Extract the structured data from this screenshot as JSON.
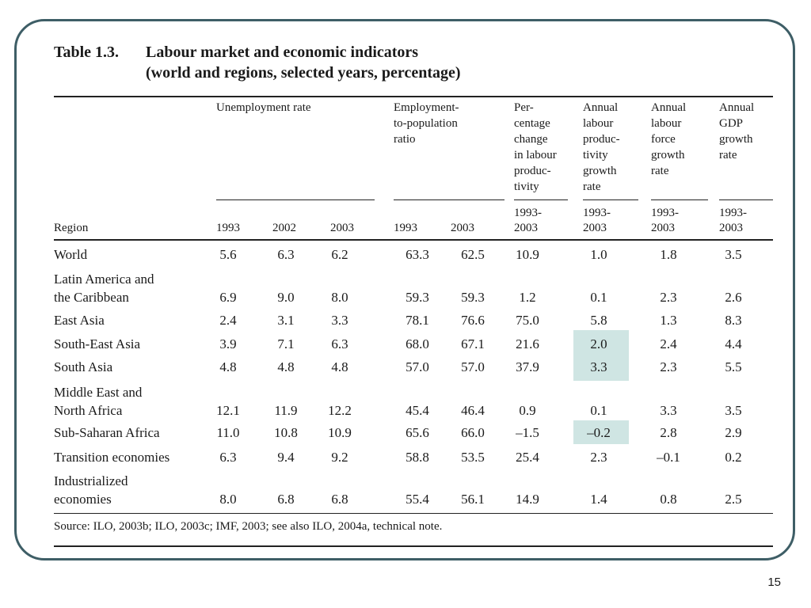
{
  "title": {
    "number": "Table 1.3.",
    "line1": "Labour market and economic indicators",
    "line2": "(world and regions, selected years, percentage)"
  },
  "headers": {
    "unemployment": "Unemployment rate",
    "employment": "Employment-\nto-population\nratio",
    "pct_change": "Per-\ncentage\nchange\nin labour\nproduc-\ntivity",
    "annual_productivity": "Annual\nlabour\nproduc-\ntivity\ngrowth\nrate",
    "annual_labour_force": "Annual\nlabour\nforce\ngrowth\nrate",
    "annual_gdp": "Annual\nGDP\ngrowth\nrate",
    "region": "Region",
    "years": [
      "1993",
      "2002",
      "2003",
      "1993",
      "2003",
      "1993-\n2003",
      "1993-\n2003",
      "1993-\n2003",
      "1993-\n2003"
    ]
  },
  "rows": [
    {
      "region": "World",
      "values": [
        "5.6",
        "6.3",
        "6.2",
        "63.3",
        "62.5",
        "10.9",
        "1.0",
        "1.8",
        "3.5"
      ]
    },
    {
      "region": "Latin America and\nthe Caribbean",
      "values": [
        "6.9",
        "9.0",
        "8.0",
        "59.3",
        "59.3",
        "1.2",
        "0.1",
        "2.3",
        "2.6"
      ]
    },
    {
      "region": "East Asia",
      "values": [
        "2.4",
        "3.1",
        "3.3",
        "78.1",
        "76.6",
        "75.0",
        "5.8",
        "1.3",
        "8.3"
      ]
    },
    {
      "region": "South-East Asia",
      "values": [
        "3.9",
        "7.1",
        "6.3",
        "68.0",
        "67.1",
        "21.6",
        "2.0",
        "2.4",
        "4.4"
      ]
    },
    {
      "region": "South Asia",
      "values": [
        "4.8",
        "4.8",
        "4.8",
        "57.0",
        "57.0",
        "37.9",
        "3.3",
        "2.3",
        "5.5"
      ]
    },
    {
      "region": "Middle East and\nNorth Africa",
      "values": [
        "12.1",
        "11.9",
        "12.2",
        "45.4",
        "46.4",
        "0.9",
        "0.1",
        "3.3",
        "3.5"
      ]
    },
    {
      "region": "Sub-Saharan Africa",
      "values": [
        "11.0",
        "10.8",
        "10.9",
        "65.6",
        "66.0",
        "–1.5",
        "–0.2",
        "2.8",
        "2.9"
      ]
    },
    {
      "region": "Transition economies",
      "values": [
        "6.3",
        "9.4",
        "9.2",
        "58.8",
        "53.5",
        "25.4",
        "2.3",
        "–0.1",
        "0.2"
      ]
    },
    {
      "region": "Industrialized\neconomies",
      "values": [
        "8.0",
        "6.8",
        "6.8",
        "55.4",
        "56.1",
        "14.9",
        "1.4",
        "0.8",
        "2.5"
      ]
    }
  ],
  "highlight_color": "#cfe5e3",
  "source": "Source: ILO, 2003b; ILO, 2003c; IMF, 2003; see also ILO, 2004a, technical note.",
  "page_number": "15"
}
